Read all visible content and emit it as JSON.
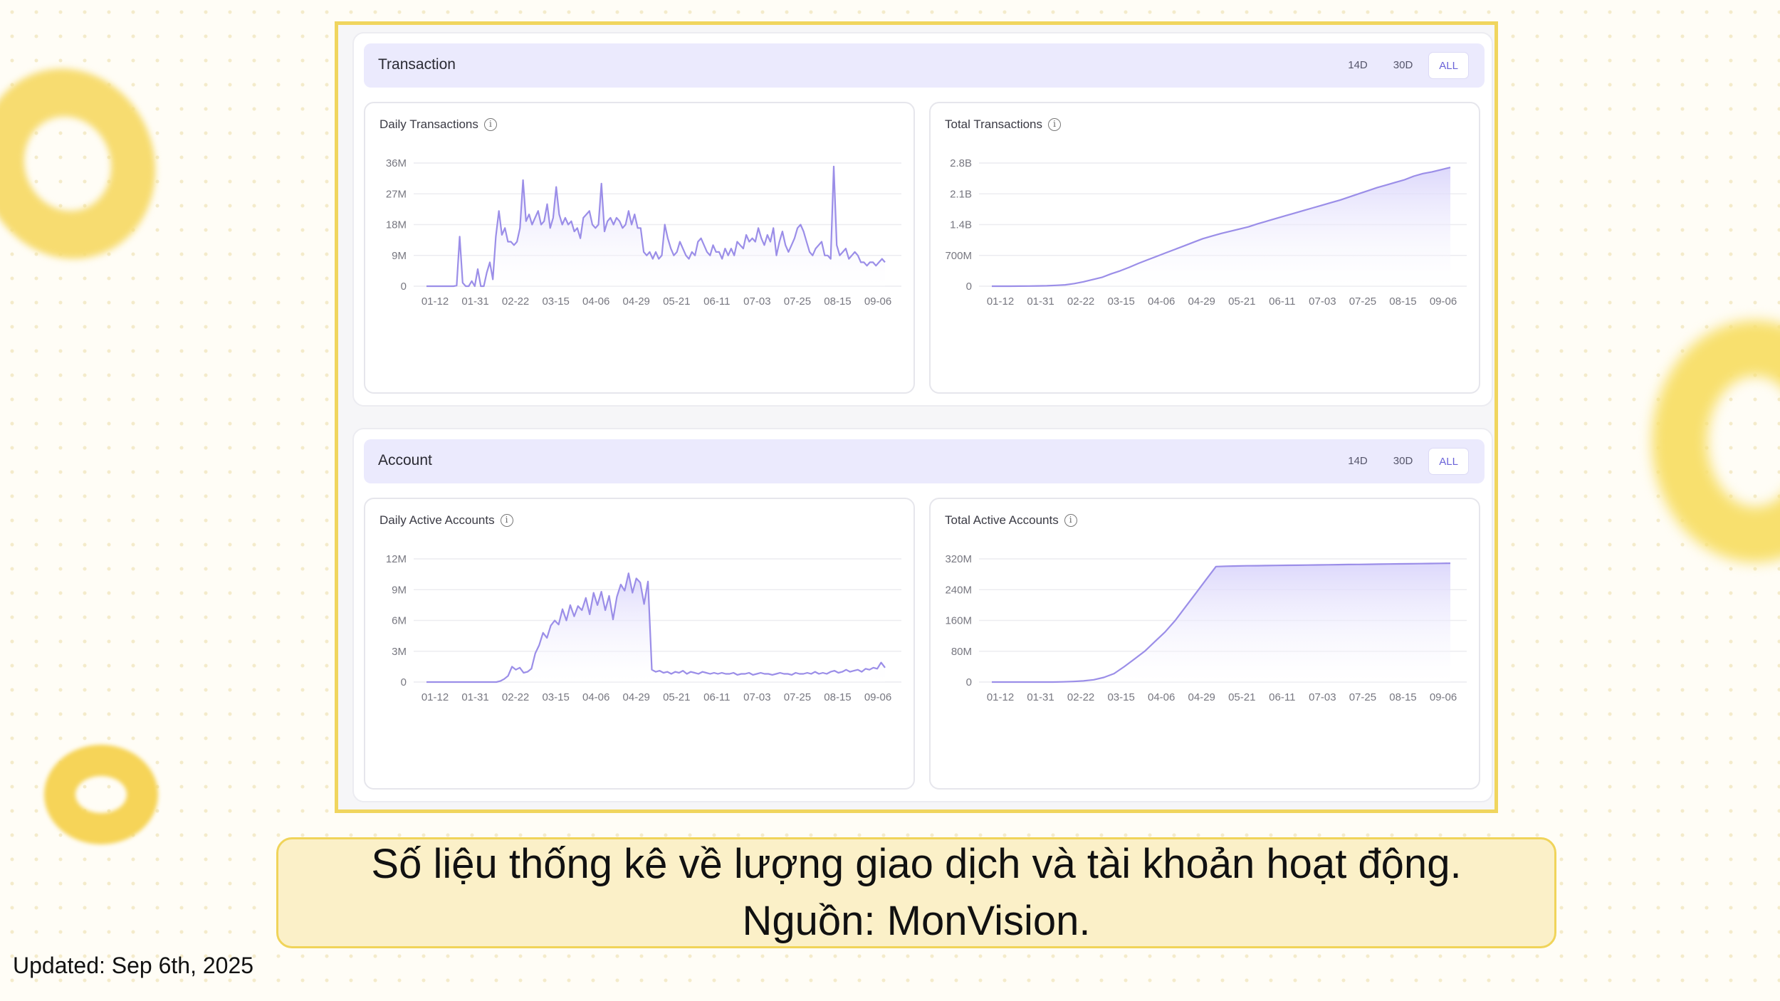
{
  "sections": [
    {
      "title": "Transaction",
      "range_tabs": [
        "14D",
        "30D",
        "ALL"
      ],
      "active_tab": "ALL",
      "panels": [
        {
          "title": "Daily Transactions"
        },
        {
          "title": "Total Transactions"
        }
      ]
    },
    {
      "title": "Account",
      "range_tabs": [
        "14D",
        "30D",
        "ALL"
      ],
      "active_tab": "ALL",
      "panels": [
        {
          "title": "Daily Active Accounts"
        },
        {
          "title": "Total Active Accounts"
        }
      ]
    }
  ],
  "caption": {
    "line1": "Số liệu thống kê về lượng giao dịch và tài khoản hoạt động.",
    "line2": "Nguồn: MonVision."
  },
  "updated": "Updated: Sep 6th, 2025",
  "colors": {
    "line": "#9b8ee8",
    "fill_top": "#d9d4fb",
    "grid": "#ececf0",
    "tick": "#777780"
  },
  "chart_data": [
    {
      "type": "area",
      "title": "Daily Transactions",
      "x_ticks": [
        "01-12",
        "01-31",
        "02-22",
        "03-15",
        "04-06",
        "04-29",
        "05-21",
        "06-11",
        "07-03",
        "07-25",
        "08-15",
        "09-06"
      ],
      "y_ticks": [
        "0",
        "9M",
        "18M",
        "27M",
        "36M"
      ],
      "ylim": [
        0,
        36
      ],
      "unit": "M",
      "grid": true,
      "values": [
        0,
        0,
        0,
        0,
        0,
        0,
        0,
        0,
        0,
        0,
        0.2,
        14.5,
        1,
        0,
        0,
        1.5,
        0,
        5,
        0,
        0,
        4,
        7,
        2,
        14.5,
        22,
        15,
        17,
        13,
        13,
        12,
        13,
        17,
        31,
        19,
        21,
        18,
        20,
        22,
        18,
        19,
        24,
        17,
        20,
        29,
        21,
        18,
        20,
        18,
        19,
        16,
        17,
        14,
        20,
        21,
        22,
        18,
        17,
        18,
        30,
        16,
        19,
        20,
        18,
        20,
        19,
        17,
        18,
        22,
        18,
        21,
        17,
        17,
        10,
        9,
        10,
        8,
        10,
        8,
        9,
        18,
        14,
        11,
        9,
        10,
        13,
        11,
        9,
        8,
        10,
        9,
        13,
        14,
        12,
        10,
        9,
        12,
        10,
        10,
        8,
        11,
        9,
        11,
        9,
        13,
        12,
        11,
        15,
        13,
        14,
        13,
        17,
        14,
        12,
        15,
        13,
        17,
        9,
        13,
        16,
        12,
        10,
        12,
        14,
        17,
        18,
        16,
        13,
        10,
        9,
        11,
        12,
        13,
        9,
        9,
        8,
        35,
        12,
        9,
        10,
        11,
        8,
        9,
        10,
        9,
        7,
        7,
        6,
        7,
        7,
        6,
        7,
        8,
        7
      ]
    },
    {
      "type": "area",
      "title": "Total Transactions",
      "x_ticks": [
        "01-12",
        "01-31",
        "02-22",
        "03-15",
        "04-06",
        "04-29",
        "05-21",
        "06-11",
        "07-03",
        "07-25",
        "08-15",
        "09-06"
      ],
      "y_ticks": [
        "0",
        "700M",
        "1.4B",
        "2.1B",
        "2.8B"
      ],
      "ylim": [
        0,
        2.8
      ],
      "unit": "B",
      "grid": true,
      "values": [
        0,
        0,
        0,
        0.001,
        0.003,
        0.006,
        0.01,
        0.02,
        0.03,
        0.06,
        0.1,
        0.15,
        0.2,
        0.28,
        0.35,
        0.43,
        0.52,
        0.6,
        0.68,
        0.76,
        0.84,
        0.92,
        1.0,
        1.08,
        1.14,
        1.2,
        1.25,
        1.3,
        1.35,
        1.42,
        1.48,
        1.54,
        1.6,
        1.66,
        1.72,
        1.78,
        1.84,
        1.9,
        1.96,
        2.03,
        2.1,
        2.17,
        2.24,
        2.3,
        2.36,
        2.42,
        2.5,
        2.56,
        2.6,
        2.65,
        2.7
      ]
    },
    {
      "type": "area",
      "title": "Daily Active Accounts",
      "x_ticks": [
        "01-12",
        "01-31",
        "02-22",
        "03-15",
        "04-06",
        "04-29",
        "05-21",
        "06-11",
        "07-03",
        "07-25",
        "08-15",
        "09-06"
      ],
      "y_ticks": [
        "0",
        "3M",
        "6M",
        "9M",
        "12M"
      ],
      "ylim": [
        0,
        12
      ],
      "unit": "M",
      "grid": true,
      "values": [
        0,
        0,
        0,
        0,
        0,
        0,
        0,
        0,
        0,
        0,
        0,
        0,
        0,
        0,
        0,
        0,
        0,
        0,
        0,
        0.1,
        0.3,
        0.6,
        1.5,
        1.2,
        1.4,
        0.9,
        1.0,
        1.3,
        2.8,
        3.6,
        4.8,
        4.3,
        5.5,
        6.0,
        5.6,
        7.1,
        6.0,
        7.5,
        6.4,
        7.4,
        7.0,
        8.2,
        6.6,
        8.7,
        7.5,
        8.8,
        7.0,
        8.4,
        6.1,
        8.3,
        9.5,
        8.9,
        10.6,
        8.7,
        10.1,
        9.7,
        7.6,
        9.8,
        1.2,
        1.0,
        1.1,
        0.9,
        1.0,
        0.8,
        1.0,
        0.9,
        1.1,
        0.8,
        1.0,
        0.9,
        0.8,
        1.0,
        0.9,
        0.8,
        0.9,
        0.8,
        0.9,
        0.8,
        0.8,
        0.9,
        0.7,
        0.8,
        0.8,
        0.9,
        0.7,
        0.8,
        0.9,
        0.8,
        0.8,
        0.7,
        0.8,
        0.9,
        0.8,
        0.8,
        0.7,
        0.9,
        0.8,
        0.8,
        0.9,
        0.8,
        1.0,
        0.8,
        0.9,
        0.8,
        1.0,
        1.1,
        0.9,
        1.0,
        1.2,
        1.0,
        1.1,
        1.2,
        1.0,
        1.3,
        1.2,
        1.4,
        1.3,
        1.9,
        1.4
      ]
    },
    {
      "type": "area",
      "title": "Total Active Accounts",
      "x_ticks": [
        "01-12",
        "01-31",
        "02-22",
        "03-15",
        "04-06",
        "04-29",
        "05-21",
        "06-11",
        "07-03",
        "07-25",
        "08-15",
        "09-06"
      ],
      "y_ticks": [
        "0",
        "80M",
        "160M",
        "240M",
        "320M"
      ],
      "ylim": [
        0,
        320
      ],
      "unit": "M",
      "grid": true,
      "values": [
        0,
        0,
        0,
        0,
        0,
        0,
        0,
        0.5,
        1.5,
        3,
        6,
        12,
        22,
        40,
        60,
        80,
        105,
        130,
        160,
        195,
        230,
        265,
        300,
        301,
        301.5,
        302,
        302.3,
        302.7,
        303,
        303.3,
        303.6,
        304,
        304.3,
        304.6,
        305,
        305.3,
        305.6,
        306,
        306.3,
        306.6,
        307,
        307.3,
        307.6,
        308,
        308.4,
        308.8
      ]
    }
  ]
}
